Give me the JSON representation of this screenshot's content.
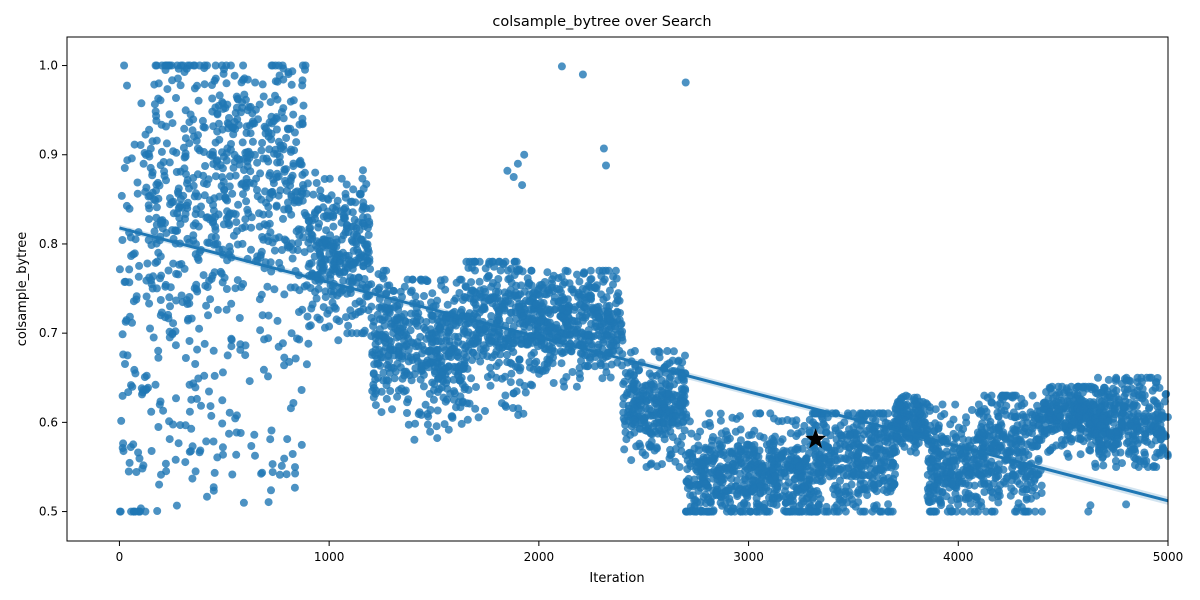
{
  "chart_data": {
    "type": "scatter",
    "title": "colsample_bytree over Search",
    "xlabel": "Iteration",
    "ylabel": "colsample_bytree",
    "xlim": [
      -250,
      5000
    ],
    "ylim": [
      0.467,
      1.032
    ],
    "xticks": [
      0,
      1000,
      2000,
      3000,
      4000,
      5000
    ],
    "xtick_labels": [
      "0",
      "1000",
      "2000",
      "3000",
      "4000",
      "5000"
    ],
    "yticks": [
      0.5,
      0.6,
      0.7,
      0.8,
      0.9,
      1.0
    ],
    "ytick_labels": [
      "0.5",
      "0.6",
      "0.7",
      "0.8",
      "0.9",
      "1.0"
    ],
    "grid": false,
    "point_color": "#1f77b4",
    "point_alpha": 0.8,
    "n_points": 5000,
    "clusters": [
      {
        "x": [
          0,
          120
        ],
        "center": 0.68,
        "spread": 0.16,
        "min": 0.5,
        "max": 1.0,
        "density": 0.6
      },
      {
        "x": [
          120,
          450
        ],
        "center": 0.85,
        "spread": 0.11,
        "min": 0.5,
        "max": 1.0,
        "density": 1.0
      },
      {
        "x": [
          450,
          900
        ],
        "center": 0.88,
        "spread": 0.07,
        "min": 0.5,
        "max": 1.0,
        "density": 1.0
      },
      {
        "x": [
          900,
          1050
        ],
        "center": 0.79,
        "spread": 0.04,
        "min": 0.5,
        "max": 0.88,
        "density": 1.0
      },
      {
        "x": [
          1050,
          1200
        ],
        "center": 0.79,
        "spread": 0.05,
        "min": 0.7,
        "max": 0.9,
        "density": 1.0
      },
      {
        "x": [
          1200,
          1350
        ],
        "center": 0.7,
        "spread": 0.04,
        "min": 0.6,
        "max": 0.77,
        "density": 1.0
      },
      {
        "x": [
          1350,
          1650
        ],
        "center": 0.68,
        "spread": 0.04,
        "min": 0.58,
        "max": 0.76,
        "density": 1.0
      },
      {
        "x": [
          1650,
          1950
        ],
        "center": 0.71,
        "spread": 0.045,
        "min": 0.6,
        "max": 0.78,
        "density": 1.0
      },
      {
        "x": [
          1950,
          2400
        ],
        "center": 0.71,
        "spread": 0.03,
        "min": 0.64,
        "max": 0.77,
        "density": 1.0
      },
      {
        "x": [
          2400,
          2700
        ],
        "center": 0.62,
        "spread": 0.03,
        "min": 0.55,
        "max": 0.68,
        "density": 1.0
      },
      {
        "x": [
          2700,
          3300
        ],
        "center": 0.54,
        "spread": 0.03,
        "min": 0.5,
        "max": 0.61,
        "density": 1.0
      },
      {
        "x": [
          3300,
          3700
        ],
        "center": 0.56,
        "spread": 0.035,
        "min": 0.5,
        "max": 0.61,
        "density": 1.0
      },
      {
        "x": [
          3700,
          3850
        ],
        "center": 0.6,
        "spread": 0.015,
        "min": 0.55,
        "max": 0.63,
        "density": 1.0
      },
      {
        "x": [
          3850,
          4100
        ],
        "center": 0.55,
        "spread": 0.035,
        "min": 0.5,
        "max": 0.62,
        "density": 1.0
      },
      {
        "x": [
          4100,
          4400
        ],
        "center": 0.57,
        "spread": 0.035,
        "min": 0.5,
        "max": 0.63,
        "density": 1.0
      },
      {
        "x": [
          4400,
          4650
        ],
        "center": 0.61,
        "spread": 0.02,
        "min": 0.56,
        "max": 0.64,
        "density": 1.0
      },
      {
        "x": [
          4650,
          5000
        ],
        "center": 0.6,
        "spread": 0.025,
        "min": 0.55,
        "max": 0.65,
        "density": 1.0
      }
    ],
    "outliers": [
      {
        "x": 2110,
        "y": 0.999
      },
      {
        "x": 2210,
        "y": 0.99
      },
      {
        "x": 2700,
        "y": 0.981
      },
      {
        "x": 2310,
        "y": 0.907
      },
      {
        "x": 2320,
        "y": 0.888
      },
      {
        "x": 1930,
        "y": 0.9
      },
      {
        "x": 1900,
        "y": 0.89
      },
      {
        "x": 1880,
        "y": 0.875
      },
      {
        "x": 1920,
        "y": 0.866
      },
      {
        "x": 1850,
        "y": 0.882
      },
      {
        "x": 4620,
        "y": 0.5
      },
      {
        "x": 4630,
        "y": 0.507
      },
      {
        "x": 4800,
        "y": 0.508
      }
    ],
    "regression": {
      "x": [
        0,
        5000
      ],
      "y": [
        0.818,
        0.512
      ],
      "color": "#1f77b4"
    },
    "best_point": {
      "x": 3320,
      "y": 0.581,
      "marker": "star",
      "color": "#000000"
    }
  }
}
